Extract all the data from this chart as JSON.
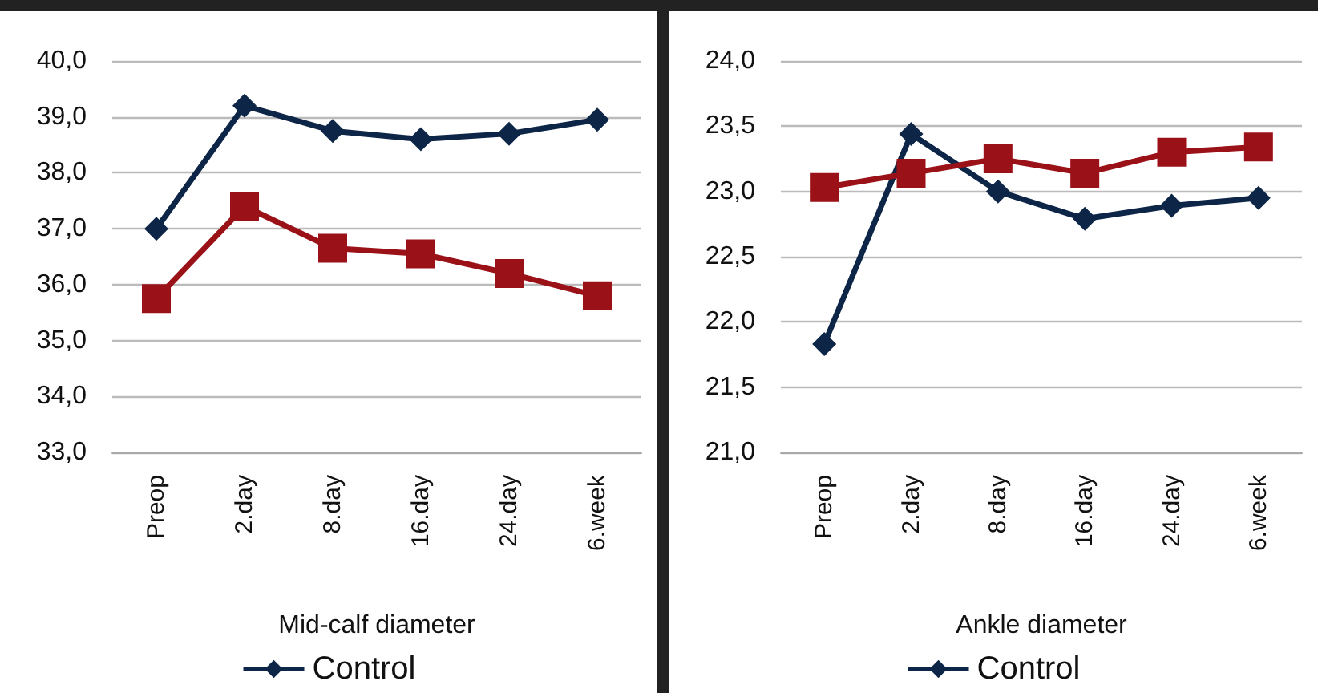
{
  "chart_data": [
    {
      "type": "line",
      "xlabel": "Mid-calf diameter",
      "categories": [
        "Preop",
        "2.day",
        "8.day",
        "16.day",
        "24.day",
        "6.week"
      ],
      "series": [
        {
          "name": "Control",
          "color": "#0d2647",
          "marker": "diamond",
          "values": [
            37.0,
            39.2,
            38.75,
            38.6,
            38.7,
            38.95
          ]
        },
        {
          "color": "#9b1118",
          "marker": "square",
          "values": [
            35.75,
            37.4,
            36.65,
            36.55,
            36.2,
            35.8
          ]
        }
      ],
      "ylim": [
        33,
        40
      ],
      "yticks": [
        {
          "value": 33,
          "label": "33,0"
        },
        {
          "value": 34,
          "label": "34,0"
        },
        {
          "value": 35,
          "label": "35,0"
        },
        {
          "value": 36,
          "label": "36,0"
        },
        {
          "value": 37,
          "label": "37,0"
        },
        {
          "value": 38,
          "label": "38,0"
        },
        {
          "value": 39,
          "label": "39,0"
        },
        {
          "value": 40,
          "label": "40,0"
        }
      ],
      "grid": "y",
      "legend": "bottom"
    },
    {
      "type": "line",
      "xlabel": "Ankle diameter",
      "categories": [
        "Preop",
        "2.day",
        "8.day",
        "16.day",
        "24.day",
        "6.week"
      ],
      "series": [
        {
          "name": "Control",
          "color": "#0d2647",
          "marker": "diamond",
          "values": [
            21.83,
            23.44,
            23.0,
            22.79,
            22.89,
            22.95
          ]
        },
        {
          "color": "#9b1118",
          "marker": "square",
          "values": [
            23.03,
            23.14,
            23.25,
            23.14,
            23.3,
            23.34
          ]
        }
      ],
      "ylim": [
        21,
        24
      ],
      "yticks": [
        {
          "value": 21,
          "label": "21,0"
        },
        {
          "value": 21.5,
          "label": "21,5"
        },
        {
          "value": 22,
          "label": "22,0"
        },
        {
          "value": 22.5,
          "label": "22,5"
        },
        {
          "value": 23,
          "label": "23,0"
        },
        {
          "value": 23.5,
          "label": "23,5"
        },
        {
          "value": 24,
          "label": "24,0"
        }
      ],
      "grid": "y",
      "legend": "bottom"
    }
  ]
}
